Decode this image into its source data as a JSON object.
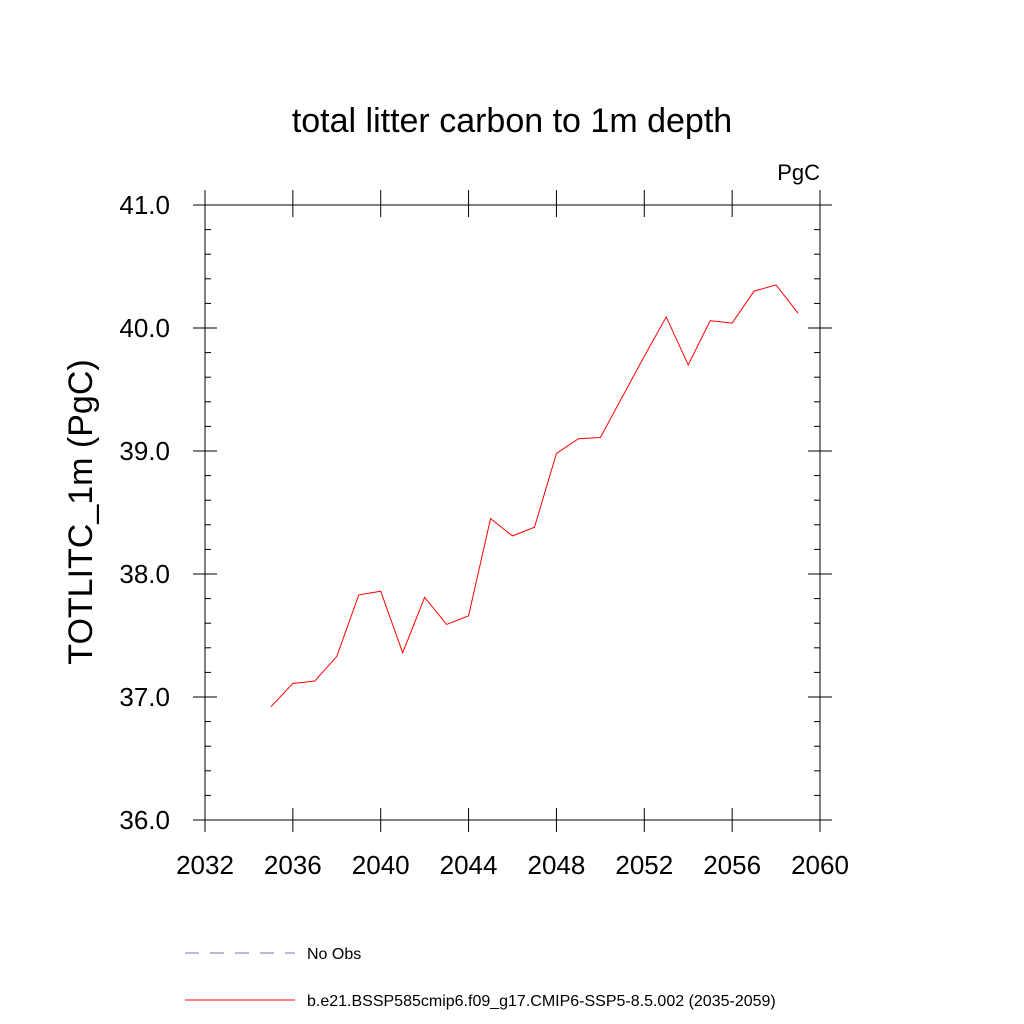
{
  "chart_data": {
    "type": "line",
    "title": "total litter carbon to 1m depth",
    "units_label": "PgC",
    "xlabel": "",
    "ylabel": "TOTLITC_1m  (PgC)",
    "xlim": [
      2032,
      2060
    ],
    "ylim": [
      36.0,
      41.0
    ],
    "x_ticks": [
      2032,
      2036,
      2040,
      2044,
      2048,
      2052,
      2056,
      2060
    ],
    "x_tick_labels": [
      "2032",
      "2036",
      "2040",
      "2044",
      "2048",
      "2052",
      "2056",
      "2060"
    ],
    "y_ticks": [
      36.0,
      37.0,
      38.0,
      39.0,
      40.0,
      41.0
    ],
    "y_tick_labels": [
      "36.0",
      "37.0",
      "38.0",
      "39.0",
      "40.0",
      "41.0"
    ],
    "grid": false,
    "legend_position": "bottom",
    "series": [
      {
        "name": "No Obs",
        "color": "#7b6fb8",
        "dash": "dashed",
        "x": [],
        "y": []
      },
      {
        "name": "b.e21.BSSP585cmip6.f09_g17.CMIP6-SSP5-8.5.002 (2035-2059)",
        "color": "#ff0000",
        "dash": "solid",
        "x": [
          2035,
          2036,
          2037,
          2038,
          2039,
          2040,
          2041,
          2042,
          2043,
          2044,
          2045,
          2046,
          2047,
          2048,
          2049,
          2050,
          2051,
          2052,
          2053,
          2054,
          2055,
          2056,
          2057,
          2058,
          2059
        ],
        "y": [
          36.92,
          37.11,
          37.13,
          37.33,
          37.83,
          37.86,
          37.36,
          37.81,
          37.59,
          37.66,
          38.45,
          38.31,
          38.38,
          38.98,
          39.1,
          39.11,
          39.44,
          39.77,
          40.09,
          39.7,
          40.06,
          40.04,
          40.3,
          40.35,
          40.12
        ]
      }
    ]
  }
}
